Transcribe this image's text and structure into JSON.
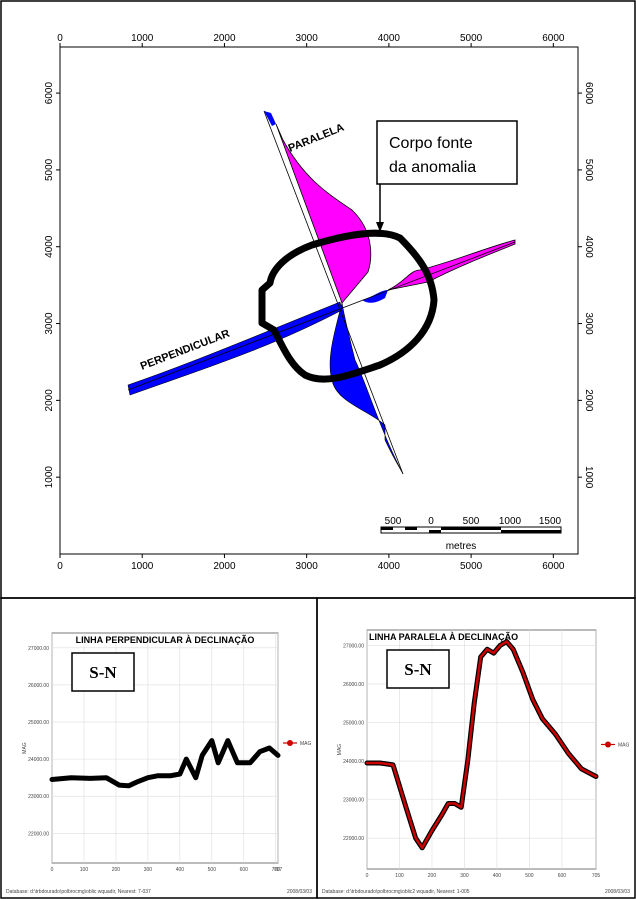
{
  "chart_data": [
    {
      "type": "map",
      "x_ticks": [
        "0",
        "1000",
        "2000",
        "3000",
        "4000",
        "5000",
        "6000"
      ],
      "y_ticks": [
        "1000",
        "2000",
        "3000",
        "4000",
        "5000",
        "6000"
      ],
      "x_range": [
        0,
        6300
      ],
      "y_range": [
        0,
        6600
      ],
      "profile_labels": {
        "parallel": "PARALELA",
        "perpendicular": "PERPENDICULAR"
      },
      "callout": [
        "Corpo fonte",
        "da anomalia"
      ],
      "scale_bar": {
        "ticks": [
          "500",
          "0",
          "500",
          "1000",
          "1500"
        ],
        "unit": "metres"
      },
      "colors": {
        "positive": "#ff00ff",
        "negative": "#0000ff",
        "body": "#000000"
      }
    },
    {
      "type": "line",
      "title": "LINHA PERPENDICULAR À DECLINAÇÃO",
      "direction": "S-N",
      "ylabel": "MAG",
      "legend": "MAG",
      "x_ticks": [
        "0",
        "100",
        "200",
        "300",
        "400",
        "500",
        "600",
        "700",
        "707"
      ],
      "y_ticks": [
        "22000.00",
        "23000.00",
        "24000.00",
        "25000.00",
        "26000.00",
        "27000.00"
      ],
      "xlim": [
        0,
        707
      ],
      "ylim": [
        21200,
        27400
      ],
      "series": [
        {
          "color": "#000000",
          "x": [
            0,
            60,
            120,
            170,
            210,
            240,
            270,
            300,
            330,
            370,
            400,
            420,
            450,
            470,
            500,
            520,
            550,
            580,
            620,
            650,
            680,
            707
          ],
          "y": [
            23450,
            23500,
            23480,
            23500,
            23300,
            23280,
            23400,
            23500,
            23550,
            23550,
            23600,
            24000,
            23500,
            24100,
            24500,
            23900,
            24500,
            23900,
            23900,
            24200,
            24300,
            24100
          ]
        }
      ],
      "footer_left": "Database: d:\\trbdourado\\polbrocmg\\oblic wquadir, Nearest: 7-037",
      "footer_right": "2008/03/03"
    },
    {
      "type": "line",
      "title": "LINHA PARALELA À DECLINAÇÃO",
      "direction": "S-N",
      "ylabel": "MAG",
      "legend": "MAG",
      "x_ticks": [
        "0",
        "100",
        "200",
        "300",
        "400",
        "500",
        "600",
        "705"
      ],
      "y_ticks": [
        "22000.00",
        "23000.00",
        "24000.00",
        "25000.00",
        "26000.00",
        "27000.00"
      ],
      "xlim": [
        0,
        705
      ],
      "ylim": [
        21200,
        27400
      ],
      "series": [
        {
          "color": "#cc0000",
          "x": [
            0,
            40,
            80,
            120,
            150,
            170,
            200,
            230,
            250,
            270,
            290,
            310,
            330,
            350,
            370,
            390,
            410,
            430,
            450,
            480,
            510,
            540,
            580,
            620,
            660,
            705
          ],
          "y": [
            23950,
            23950,
            23900,
            22800,
            22000,
            21750,
            22200,
            22600,
            22900,
            22900,
            22800,
            24000,
            25500,
            26700,
            26900,
            26800,
            27000,
            27100,
            26900,
            26300,
            25600,
            25100,
            24700,
            24200,
            23800,
            23600
          ]
        }
      ],
      "footer_left": "Database: d:\\trbdourado\\polbrocmg\\oblic2 wquadir, Nearest: 1-005",
      "footer_right": "2008/03/03"
    }
  ]
}
